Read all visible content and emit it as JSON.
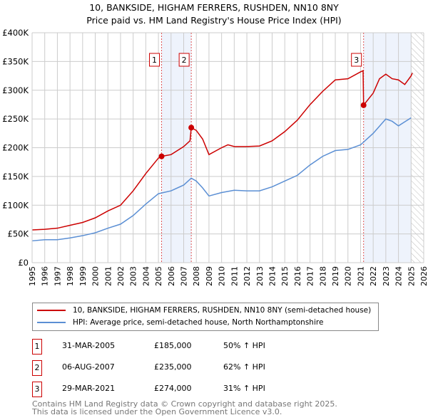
{
  "chart_data": {
    "type": "line",
    "title": "10, BANKSIDE, HIGHAM FERRERS, RUSHDEN, NN10 8NY",
    "subtitle": "Price paid vs. HM Land Registry's House Price Index (HPI)",
    "xlim": [
      1995,
      2026
    ],
    "ylim": [
      0,
      400000
    ],
    "x_ticks": [
      "1995",
      "1996",
      "1997",
      "1998",
      "1999",
      "2000",
      "2001",
      "2002",
      "2003",
      "2004",
      "2005",
      "2006",
      "2007",
      "2008",
      "2009",
      "2010",
      "2011",
      "2012",
      "2013",
      "2014",
      "2015",
      "2016",
      "2017",
      "2018",
      "2019",
      "2020",
      "2021",
      "2022",
      "2023",
      "2024",
      "2025",
      "2026"
    ],
    "y_ticks": [
      {
        "v": 0,
        "label": "£0"
      },
      {
        "v": 50000,
        "label": "£50K"
      },
      {
        "v": 100000,
        "label": "£100K"
      },
      {
        "v": 150000,
        "label": "£150K"
      },
      {
        "v": 200000,
        "label": "£200K"
      },
      {
        "v": 250000,
        "label": "£250K"
      },
      {
        "v": 300000,
        "label": "£300K"
      },
      {
        "v": 350000,
        "label": "£350K"
      },
      {
        "v": 400000,
        "label": "£400K"
      }
    ],
    "grid": true,
    "series": [
      {
        "name": "10, BANKSIDE, HIGHAM FERRERS, RUSHDEN, NN10 8NY (semi-detached house)",
        "color": "#cc0000",
        "x": [
          1995,
          1996,
          1997,
          1998,
          1999,
          2000,
          2001,
          2002,
          2003,
          2004,
          2005,
          2005.25,
          2006,
          2007,
          2007.5,
          2007.6,
          2008,
          2008.5,
          2009,
          2010,
          2010.5,
          2011,
          2012,
          2013,
          2014,
          2015,
          2016,
          2017,
          2018,
          2019,
          2020,
          2021,
          2021.2,
          2021.24,
          2022,
          2022.5,
          2023,
          2023.5,
          2024,
          2024.5,
          2025,
          2025.1
        ],
        "y": [
          57000,
          58000,
          60000,
          65000,
          70000,
          78000,
          90000,
          100000,
          125000,
          155000,
          182000,
          185000,
          188000,
          202000,
          212000,
          235000,
          230000,
          215000,
          188000,
          200000,
          205000,
          202000,
          202000,
          203000,
          212000,
          228000,
          248000,
          275000,
          298000,
          318000,
          320000,
          332000,
          334000,
          274000,
          295000,
          320000,
          328000,
          320000,
          318000,
          310000,
          325000,
          330000
        ]
      },
      {
        "name": "HPI: Average price, semi-detached house, North Northamptonshire",
        "color": "#5b8fd4",
        "x": [
          1995,
          1996,
          1997,
          1998,
          1999,
          2000,
          2001,
          2002,
          2003,
          2004,
          2005,
          2006,
          2007,
          2007.6,
          2008,
          2008.5,
          2009,
          2010,
          2011,
          2012,
          2013,
          2014,
          2015,
          2016,
          2017,
          2018,
          2019,
          2020,
          2021,
          2022,
          2023,
          2023.5,
          2024,
          2024.5,
          2025
        ],
        "y": [
          38000,
          40000,
          40000,
          43000,
          47000,
          52000,
          60000,
          67000,
          82000,
          102000,
          120000,
          125000,
          135000,
          147000,
          142000,
          130000,
          116000,
          122000,
          126000,
          125000,
          125000,
          132000,
          142000,
          152000,
          170000,
          185000,
          195000,
          197000,
          205000,
          225000,
          250000,
          246000,
          238000,
          245000,
          252000
        ]
      }
    ],
    "sales": [
      {
        "n": "1",
        "date": "31-MAR-2005",
        "x": 2005.25,
        "price": "£185,000",
        "value": 185000,
        "hpi": "50% ↑ HPI"
      },
      {
        "n": "2",
        "date": "06-AUG-2007",
        "x": 2007.6,
        "price": "£235,000",
        "value": 235000,
        "hpi": "62% ↑ HPI"
      },
      {
        "n": "3",
        "date": "29-MAR-2021",
        "x": 2021.24,
        "price": "£274,000",
        "value": 274000,
        "hpi": "31% ↑ HPI"
      }
    ],
    "shaded_ranges": [
      [
        2005.25,
        2007.6
      ],
      [
        2021.24,
        2025.0
      ]
    ],
    "hatched_range": [
      2025.0,
      2026
    ],
    "legend_position": "below"
  },
  "footer": [
    "Contains HM Land Registry data © Crown copyright and database right 2025.",
    "This data is licensed under the Open Government Licence v3.0."
  ]
}
